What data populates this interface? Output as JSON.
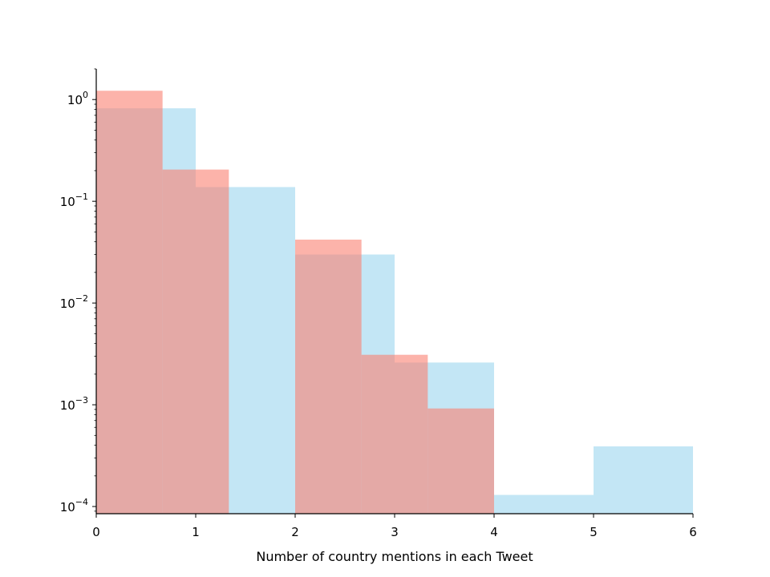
{
  "chart_data": {
    "type": "bar",
    "subtype": "overlapping-histogram",
    "title": "",
    "xlabel": "Number of country mentions in each Tweet",
    "ylabel": "",
    "xlim": [
      0,
      6
    ],
    "yscale": "log",
    "ylim": [
      8.5e-05,
      2.0
    ],
    "grid": false,
    "legend": "none",
    "x_ticks": [
      {
        "value": 0,
        "label": "0"
      },
      {
        "value": 1,
        "label": "1"
      },
      {
        "value": 2,
        "label": "2"
      },
      {
        "value": 3,
        "label": "3"
      },
      {
        "value": 4,
        "label": "4"
      },
      {
        "value": 5,
        "label": "5"
      },
      {
        "value": 6,
        "label": "6"
      }
    ],
    "y_ticks": [
      {
        "value": 1,
        "base": "10",
        "exp": "0"
      },
      {
        "value": 0.1,
        "base": "10",
        "exp": "−1"
      },
      {
        "value": 0.01,
        "base": "10",
        "exp": "−2"
      },
      {
        "value": 0.001,
        "base": "10",
        "exp": "−3"
      },
      {
        "value": 0.0001,
        "base": "10",
        "exp": "−4"
      }
    ],
    "series": [
      {
        "color": "#87CEEB",
        "opacity": 0.5,
        "bins": [
          {
            "x0": 0,
            "x1": 1,
            "value": 0.82
          },
          {
            "x0": 1,
            "x1": 2,
            "value": 0.138
          },
          {
            "x0": 2,
            "x1": 3,
            "value": 0.03
          },
          {
            "x0": 3,
            "x1": 4,
            "value": 0.0026
          },
          {
            "x0": 4,
            "x1": 5,
            "value": 0.00013
          },
          {
            "x0": 5,
            "x1": 6,
            "value": 0.00039
          }
        ]
      },
      {
        "color": "#FA8072",
        "opacity": 0.6,
        "bins": [
          {
            "x0": 0,
            "x1": 0.6667,
            "value": 1.22
          },
          {
            "x0": 0.6667,
            "x1": 1.3333,
            "value": 0.205
          },
          {
            "x0": 1.3333,
            "x1": 2,
            "value": 0
          },
          {
            "x0": 2,
            "x1": 2.6667,
            "value": 0.042
          },
          {
            "x0": 2.6667,
            "x1": 3.3333,
            "value": 0.0031
          },
          {
            "x0": 3.3333,
            "x1": 4,
            "value": 0.00092
          }
        ]
      }
    ]
  }
}
